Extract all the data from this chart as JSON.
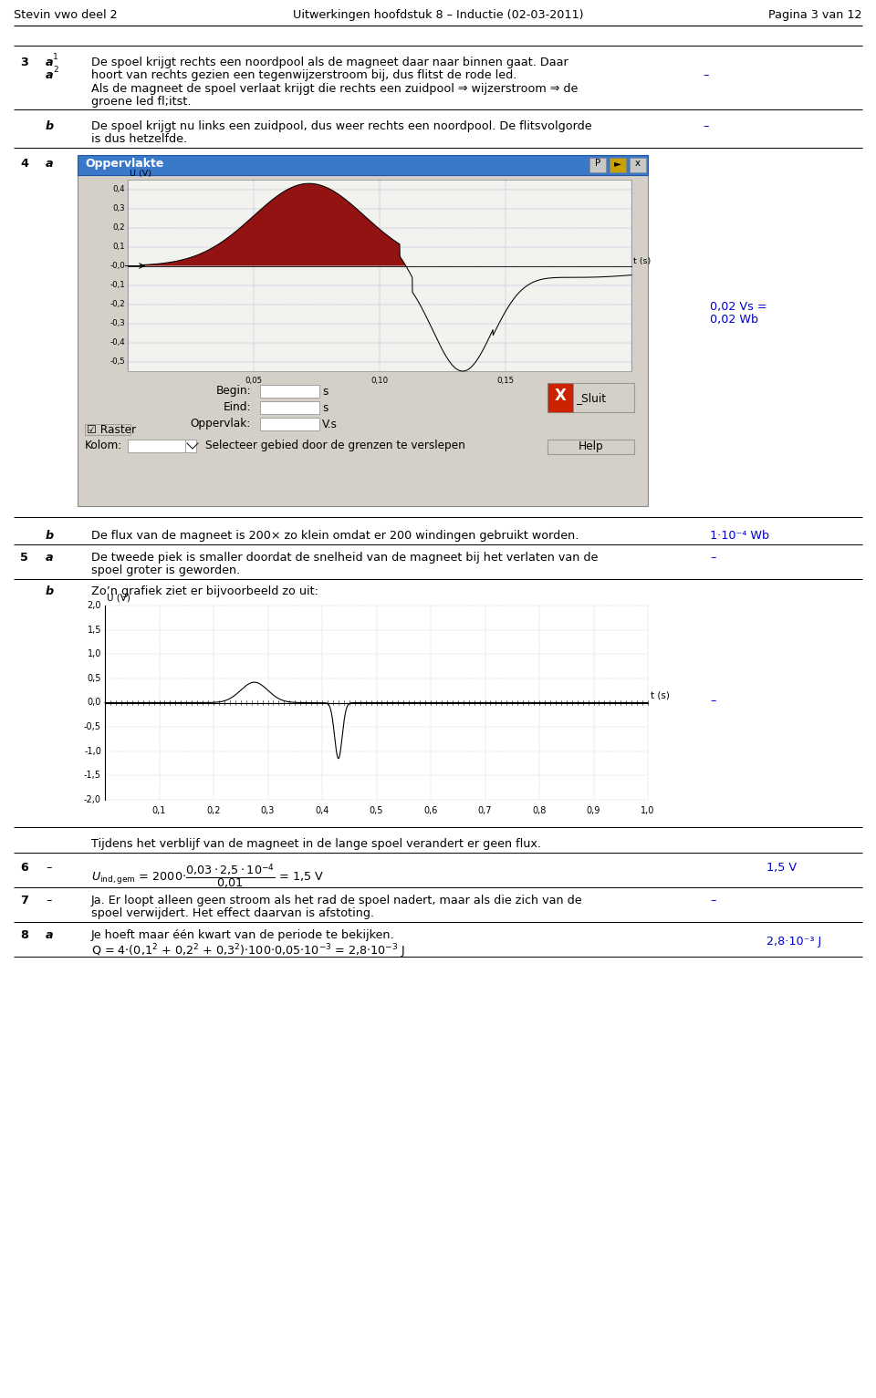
{
  "page_bg": "#ffffff",
  "header_left": "Stevin vwo deel 2",
  "header_center": "Uitwerkingen hoofdstuk 8 – Inductie (02-03-2011)",
  "header_right": "Pagina 3 van 12",
  "q3_a1": "De spoel krijgt rechts een noordpool als de magneet daar naar binnen gaat. Daar",
  "q3_a2": "hoort van rechts gezien een tegenwijzerstroom bij, dus flitst de rode led.",
  "q3_sub1": "Als de magneet de spoel verlaat krijgt die rechts een zuidpool ⇒ wijzerstroom ⇒ de",
  "q3_sub2": "groene led fl;itst.",
  "q3_b1": "De spoel krijgt nu links een zuidpool, dus weer rechts een noordpool. De flitsvolgorde",
  "q3_b2": "is dus hetzelfde.",
  "q4b_text": "De flux van de magneet is 200× zo klein omdat er 200 windingen gebruikt worden.",
  "q4b_score": "1·10⁻⁴ Wb",
  "q5_a1": "De tweede piek is smaller doordat de snelheid van de magneet bij het verlaten van de",
  "q5_a2": "spoel groter is geworden.",
  "q5_b_text": "Zo’n grafiek ziet er bijvoorbeeld zo uit:",
  "q6_text": "Tijdens het verblijf van de magneet in de lange spoel verandert er geen flux.",
  "q6_formula_left": "U",
  "q6_formula": "= 2000·",
  "q6_formula2": "= 1,5 V",
  "q6_score": "1,5 V",
  "q7_text1": "Ja. Er loopt alleen geen stroom als het rad de spoel nadert, maar als die zich van de",
  "q7_text2": "spoel verwijdert. Het effect daarvan is afstoting.",
  "q8_text1": "Je hoeft maar één kwart van de periode te bekijken.",
  "q8_text2": "Q = 4·(0,1",
  "q8_score": "2,8·10⁻³ J",
  "score_color": "#0000cc",
  "dash": "–"
}
